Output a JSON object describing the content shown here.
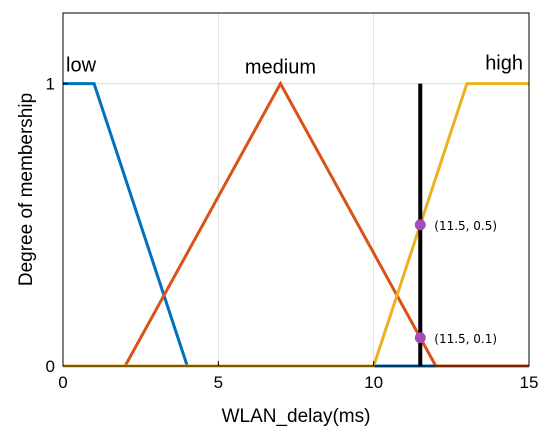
{
  "chart_data": {
    "type": "line",
    "title": "",
    "xlabel": "WLAN_delay(ms)",
    "ylabel": "Degree of membership",
    "xlim": [
      0,
      15
    ],
    "ylim": [
      0,
      1.25
    ],
    "xticks": [
      0,
      5,
      10,
      15
    ],
    "yticks": [
      0,
      1
    ],
    "xtick_labels": [
      "0",
      "5",
      "10",
      "15"
    ],
    "ytick_labels": [
      "0",
      "1"
    ],
    "grid": true,
    "series": [
      {
        "name": "low",
        "color": "#0072BD",
        "x": [
          0,
          1,
          4,
          15
        ],
        "y": [
          1,
          1,
          0,
          0
        ]
      },
      {
        "name": "medium",
        "color": "#D95319",
        "x": [
          0,
          2,
          7,
          12,
          15
        ],
        "y": [
          0,
          0,
          1,
          0,
          0
        ]
      },
      {
        "name": "high",
        "color": "#EDB120",
        "x": [
          0,
          10,
          13,
          15
        ],
        "y": [
          0,
          0,
          1,
          1
        ]
      }
    ],
    "vertical_line": {
      "x": 11.5,
      "y": [
        0,
        1
      ],
      "color": "#000000"
    },
    "points": [
      {
        "x": 11.5,
        "y": 0.5,
        "label": "(11.5,  0.5)",
        "color": "#A24DB8"
      },
      {
        "x": 11.5,
        "y": 0.1,
        "label": "(11.5,  0.1)",
        "color": "#A24DB8"
      }
    ]
  }
}
